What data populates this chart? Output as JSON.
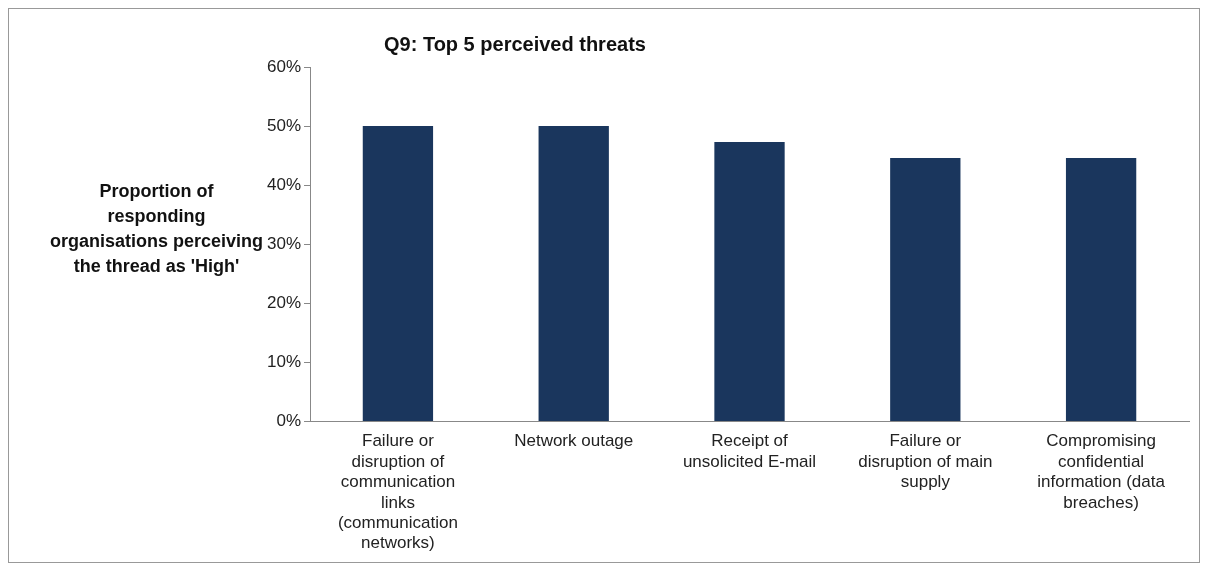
{
  "chart_data": {
    "type": "bar",
    "title": "Q9: Top 5 perceived threats",
    "ylabel": "Proportion of responding organisations perceiving the thread as 'High'",
    "categories": [
      "Failure or disruption of communication links (communication networks)",
      "Network outage",
      "Receipt of unsolicited E-mail",
      "Failure or disruption of main supply",
      "Compromising confidential information (data breaches)"
    ],
    "values": [
      50,
      50,
      47.3,
      44.6,
      44.6
    ],
    "color": "#1a365d",
    "ylim": [
      0,
      60
    ],
    "yticks": [
      {
        "value": 0,
        "label": "0%"
      },
      {
        "value": 10,
        "label": "10%"
      },
      {
        "value": 20,
        "label": "20%"
      },
      {
        "value": 30,
        "label": "30%"
      },
      {
        "value": 40,
        "label": "40%"
      },
      {
        "value": 50,
        "label": "50%"
      },
      {
        "value": 60,
        "label": "60%"
      }
    ],
    "grid": false,
    "legend": false
  }
}
